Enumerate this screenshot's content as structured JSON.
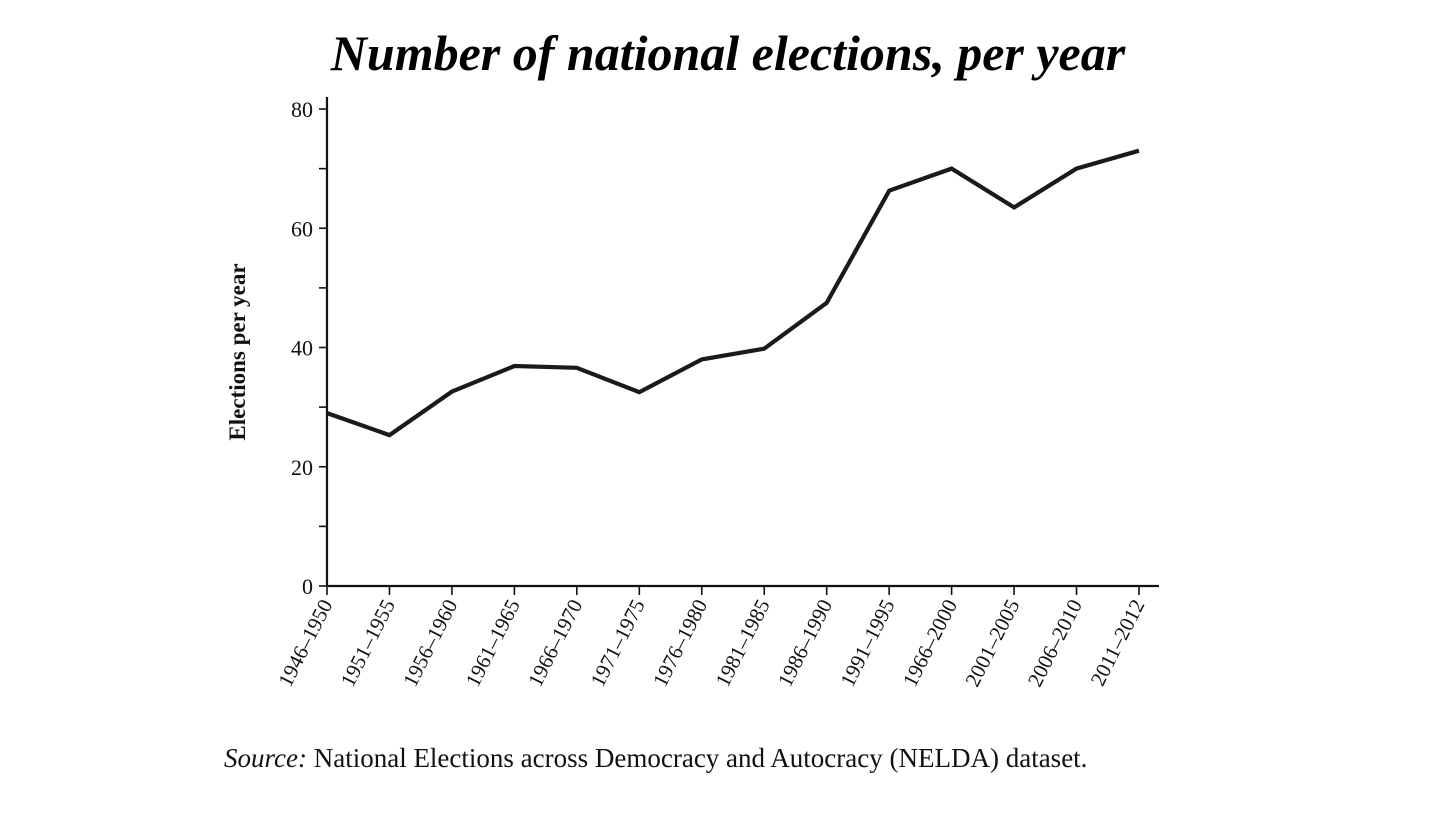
{
  "chart_data": {
    "type": "line",
    "title": "Number of national elections, per year",
    "ylabel": "Elections per year",
    "xlabel": "",
    "categories": [
      "1946–1950",
      "1951–1955",
      "1956–1960",
      "1961–1965",
      "1966–1970",
      "1971–1975",
      "1976–1980",
      "1981–1985",
      "1986–1990",
      "1991–1995",
      "1966–2000",
      "2001–2005",
      "2006–2010",
      "2011–2012"
    ],
    "series": [
      {
        "values": [
          29,
          25.3,
          32.6,
          36.9,
          36.6,
          32.5,
          38,
          39.8,
          47.5,
          66.3,
          70,
          63.5,
          70,
          73
        ],
        "color": "#1a1a1a"
      }
    ],
    "ylim": [
      0,
      80
    ],
    "yticks": [
      0,
      20,
      40,
      60,
      80
    ],
    "y_minor_step": 10,
    "grid": false,
    "legend": "none"
  },
  "source_note": {
    "label": "Source:",
    "text": "National Elections across Democracy and Autocracy (NELDA) dataset."
  }
}
